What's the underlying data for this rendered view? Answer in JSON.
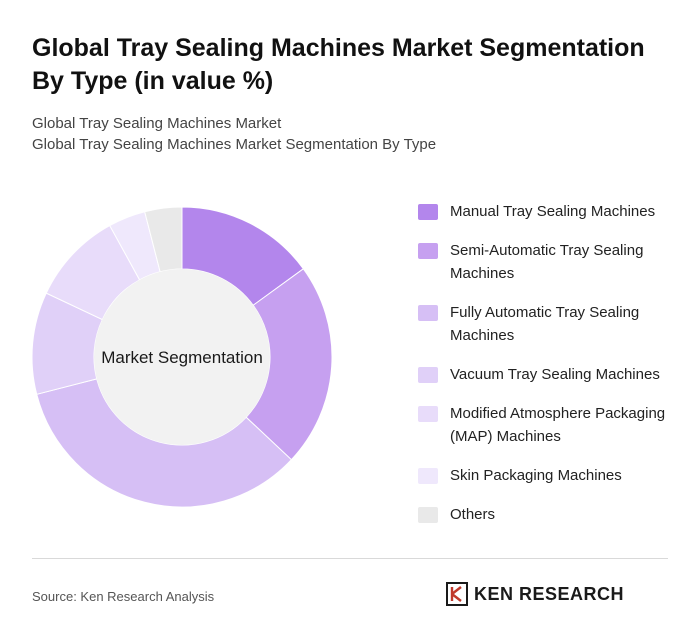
{
  "title": "Global Tray Sealing Machines Market Segmentation By Type (in value %)",
  "breadcrumb": {
    "line1": "Global Tray Sealing Machines Market",
    "line2": "Global Tray Sealing Machines Market Segmentation By Type"
  },
  "chart_data": {
    "type": "pie",
    "style": "donut",
    "center_label": "Market Segmentation",
    "legend_position": "right",
    "categories": [
      "Manual Tray Sealing Machines",
      "Semi-Automatic Tray Sealing Machines",
      "Fully Automatic Tray Sealing Machines",
      "Vacuum Tray Sealing Machines",
      "Modified Atmosphere Packaging (MAP) Machines",
      "Skin Packaging Machines",
      "Others"
    ],
    "values": [
      15,
      22,
      34,
      11,
      10,
      4,
      4
    ],
    "unit": "%",
    "colors": [
      "#b386ec",
      "#c6a0f0",
      "#d6bff5",
      "#e0d0f8",
      "#e8dcfa",
      "#efe8fc",
      "#e9e9e9"
    ]
  },
  "footer": {
    "source": "Source: Ken Research Analysis",
    "logo_text": "KEN RESEARCH"
  }
}
